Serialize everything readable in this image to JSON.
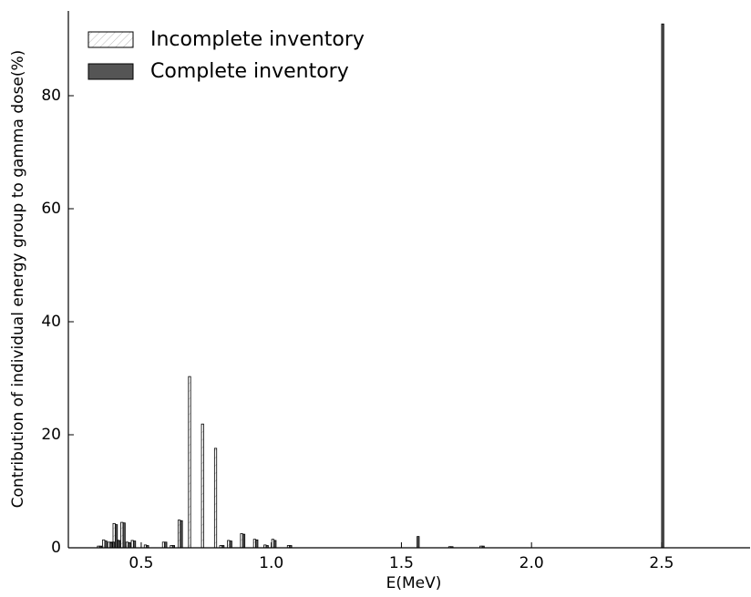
{
  "chart_data": {
    "type": "bar",
    "x_label": "E(MeV)",
    "y_label": "Contribution of individual energy group to gamma dose(%)",
    "x": [
      0.34,
      0.36,
      0.38,
      0.39,
      0.4,
      0.41,
      0.43,
      0.45,
      0.47,
      0.52,
      0.59,
      0.62,
      0.65,
      0.69,
      0.74,
      0.79,
      0.81,
      0.84,
      0.89,
      0.94,
      0.98,
      1.01,
      1.07,
      1.56,
      1.69,
      1.81,
      2.5
    ],
    "series": [
      {
        "name": "Incomplete inventory",
        "color": "#ffffff",
        "values": [
          0.3,
          1.4,
          1,
          1,
          4.3,
          1.4,
          4.5,
          1,
          1.3,
          0.5,
          1,
          0.4,
          4.9,
          30.3,
          21.9,
          17.6,
          0.4,
          1.3,
          2.5,
          1.5,
          0.5,
          1.5,
          0.4,
          0,
          0.2,
          0.3,
          0
        ]
      },
      {
        "name": "Complete inventory",
        "color": "#555555",
        "values": [
          0.3,
          1.2,
          0.9,
          1,
          4.1,
          1.3,
          4.4,
          0.9,
          1.2,
          0.4,
          1,
          0.4,
          4.8,
          0,
          0,
          0,
          0.4,
          1.2,
          2.4,
          1.4,
          0.4,
          1.3,
          0.4,
          2,
          0.2,
          0.3,
          92.7
        ]
      }
    ],
    "xlim": [
      0.22,
      2.84
    ],
    "ylim": [
      0,
      95
    ],
    "xticks": [
      0.5,
      {
        "value": 1,
        "label": "1.0"
      },
      1.5,
      {
        "value": 2,
        "label": "2.0"
      },
      2.5
    ],
    "yticks": [
      0,
      20,
      40,
      60,
      80
    ],
    "legend": "upper-left"
  }
}
